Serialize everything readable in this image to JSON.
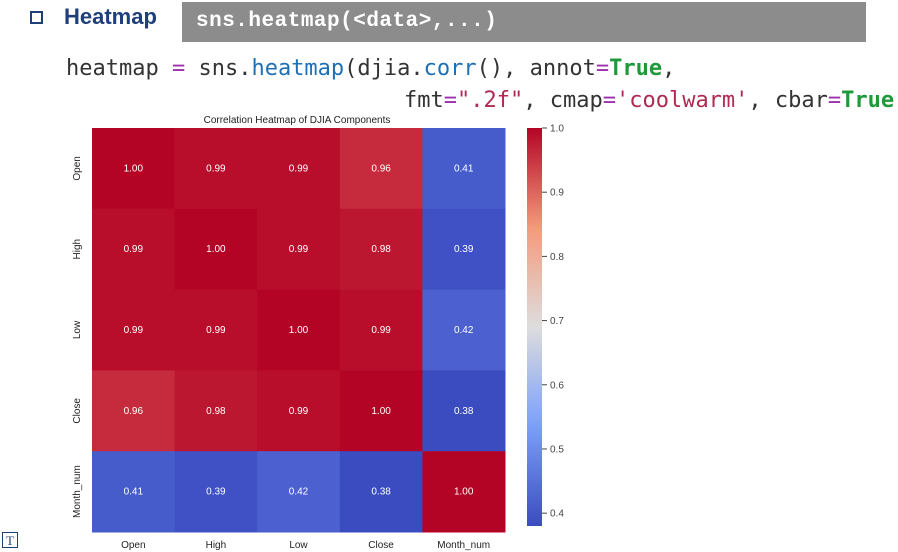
{
  "slide": {
    "heading": "Heatmap",
    "signature": "sns.heatmap(<data>,...)",
    "code": {
      "var": "heatmap",
      "eq": " = ",
      "module": "sns.",
      "func": "heatmap",
      "arg_open": "(djia.",
      "corr_fn": "corr",
      "arg_rest": "(), annot",
      "annot_val": "True",
      "comma1": ",",
      "fmt_key": "fmt",
      "fmt_val": "\".2f\"",
      "mid": ", cmap",
      "cmap_val": "'coolwarm'",
      "cbar_key": ", cbar",
      "cbar_val": "True",
      "close": ")"
    }
  },
  "chart_data": {
    "type": "heatmap",
    "title": "Correlation Heatmap of DJIA Components",
    "row_labels": [
      "Open",
      "High",
      "Low",
      "Close",
      "Month_num"
    ],
    "col_labels": [
      "Open",
      "High",
      "Low",
      "Close",
      "Month_num"
    ],
    "values": [
      [
        1.0,
        0.99,
        0.99,
        0.96,
        0.41
      ],
      [
        0.99,
        1.0,
        0.99,
        0.98,
        0.39
      ],
      [
        0.99,
        0.99,
        1.0,
        0.99,
        0.42
      ],
      [
        0.96,
        0.98,
        0.99,
        1.0,
        0.38
      ],
      [
        0.41,
        0.39,
        0.42,
        0.38,
        1.0
      ]
    ],
    "vmin": 0.38,
    "vmax": 1.0,
    "cmap": "coolwarm",
    "annot_format": ".2f",
    "colorbar_ticks": [
      1.0,
      0.9,
      0.8,
      0.7,
      0.6,
      0.5,
      0.4
    ],
    "colorbar_tick_labels": [
      "1.0",
      "0.9",
      "0.8",
      "0.7",
      "0.6",
      "0.5",
      "0.4"
    ]
  },
  "footer": {
    "logo_text": "T"
  }
}
